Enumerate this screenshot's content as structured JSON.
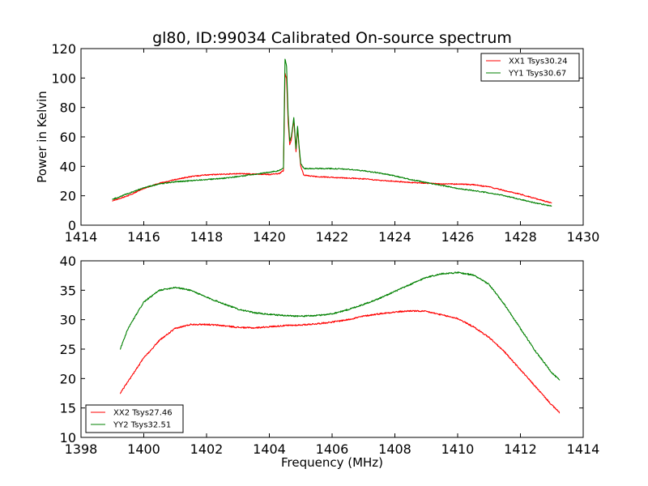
{
  "figure": {
    "title": "gl80, ID:99034 Calibrated On-source spectrum",
    "xlabel": "Frequency (MHz)",
    "ylabel": "Power in Kelvin"
  },
  "chart_data": [
    {
      "type": "line",
      "xlim": [
        1414,
        1430
      ],
      "ylim": [
        0,
        120
      ],
      "xticks": [
        1414,
        1416,
        1418,
        1420,
        1422,
        1424,
        1426,
        1428,
        1430
      ],
      "yticks": [
        0,
        20,
        40,
        60,
        80,
        100,
        120
      ],
      "legend_position": "top-right",
      "series": [
        {
          "name": "XX1 Tsys30.24",
          "color": "#ff0000",
          "x": [
            1415.0,
            1415.5,
            1416.0,
            1416.5,
            1417.0,
            1417.5,
            1418.0,
            1418.5,
            1419.0,
            1419.5,
            1420.0,
            1420.3,
            1420.45,
            1420.5,
            1420.55,
            1420.6,
            1420.65,
            1420.7,
            1420.78,
            1420.85,
            1420.9,
            1420.95,
            1421.0,
            1421.1,
            1421.5,
            1422.0,
            1422.5,
            1423.0,
            1423.5,
            1424.0,
            1424.5,
            1425.0,
            1425.5,
            1426.0,
            1426.5,
            1427.0,
            1427.5,
            1428.0,
            1428.5,
            1429.0
          ],
          "y": [
            16.5,
            20,
            25,
            28.5,
            31,
            33,
            34.2,
            34.6,
            35,
            34.8,
            34.5,
            35,
            37,
            103,
            100,
            70,
            55,
            58,
            72,
            50,
            66,
            52,
            40,
            34,
            33,
            32.5,
            32,
            31.5,
            30.5,
            29.8,
            29,
            28.5,
            28,
            28,
            27.5,
            26,
            23.5,
            21,
            18,
            15
          ]
        },
        {
          "name": "YY1 Tsys30.67",
          "color": "#008000",
          "x": [
            1415.0,
            1415.5,
            1416.0,
            1416.5,
            1417.0,
            1417.5,
            1418.0,
            1418.5,
            1419.0,
            1419.5,
            1420.0,
            1420.3,
            1420.45,
            1420.5,
            1420.55,
            1420.6,
            1420.65,
            1420.7,
            1420.78,
            1420.85,
            1420.9,
            1420.95,
            1421.0,
            1421.1,
            1421.5,
            1422.0,
            1422.5,
            1423.0,
            1423.5,
            1424.0,
            1424.5,
            1425.0,
            1425.5,
            1426.0,
            1426.5,
            1427.0,
            1427.5,
            1428.0,
            1428.5,
            1429.0
          ],
          "y": [
            17.5,
            21.5,
            25.5,
            28,
            29.5,
            30.2,
            31,
            31.8,
            33,
            34.5,
            36,
            37,
            39,
            113,
            108,
            75,
            57,
            60,
            73,
            52,
            67,
            53,
            42,
            38.5,
            38.5,
            38.5,
            38,
            37,
            35.5,
            33.5,
            31,
            29,
            27,
            25,
            23.5,
            22,
            20,
            17.5,
            15,
            13
          ]
        }
      ]
    },
    {
      "type": "line",
      "xlim": [
        1398,
        1414
      ],
      "ylim": [
        10,
        40
      ],
      "xticks": [
        1398,
        1400,
        1402,
        1404,
        1406,
        1408,
        1410,
        1412,
        1414
      ],
      "yticks": [
        10,
        15,
        20,
        25,
        30,
        35,
        40
      ],
      "legend_position": "bottom-left",
      "series": [
        {
          "name": "XX2 Tsys27.46",
          "color": "#ff0000",
          "x": [
            1399.25,
            1399.5,
            1400.0,
            1400.5,
            1401.0,
            1401.5,
            1402.0,
            1402.5,
            1403.0,
            1403.5,
            1404.0,
            1404.5,
            1405.0,
            1405.5,
            1406.0,
            1406.5,
            1407.0,
            1407.5,
            1408.0,
            1408.5,
            1409.0,
            1409.5,
            1410.0,
            1410.5,
            1411.0,
            1411.5,
            1412.0,
            1412.5,
            1413.0,
            1413.25
          ],
          "y": [
            17.5,
            19.5,
            23.5,
            26.5,
            28.5,
            29.2,
            29.2,
            29,
            28.7,
            28.6,
            28.8,
            29,
            29.1,
            29.3,
            29.6,
            30,
            30.6,
            31,
            31.3,
            31.5,
            31.4,
            30.8,
            30.2,
            28.8,
            27,
            24.5,
            21.5,
            18.5,
            15.5,
            14.2
          ]
        },
        {
          "name": "YY2 Tsys32.51",
          "color": "#008000",
          "x": [
            1399.25,
            1399.5,
            1400.0,
            1400.5,
            1401.0,
            1401.5,
            1402.0,
            1402.5,
            1403.0,
            1403.5,
            1404.0,
            1404.5,
            1405.0,
            1405.5,
            1406.0,
            1406.5,
            1407.0,
            1407.5,
            1408.0,
            1408.5,
            1409.0,
            1409.5,
            1410.0,
            1410.5,
            1411.0,
            1411.5,
            1412.0,
            1412.5,
            1413.0,
            1413.25
          ],
          "y": [
            25,
            28.5,
            33,
            35,
            35.5,
            35,
            33.8,
            32.8,
            31.8,
            31.2,
            30.9,
            30.7,
            30.6,
            30.7,
            31,
            31.7,
            32.6,
            33.6,
            34.8,
            36,
            37.2,
            37.8,
            38,
            37.6,
            36,
            32.5,
            28.5,
            24.5,
            21,
            19.7
          ]
        }
      ]
    }
  ]
}
